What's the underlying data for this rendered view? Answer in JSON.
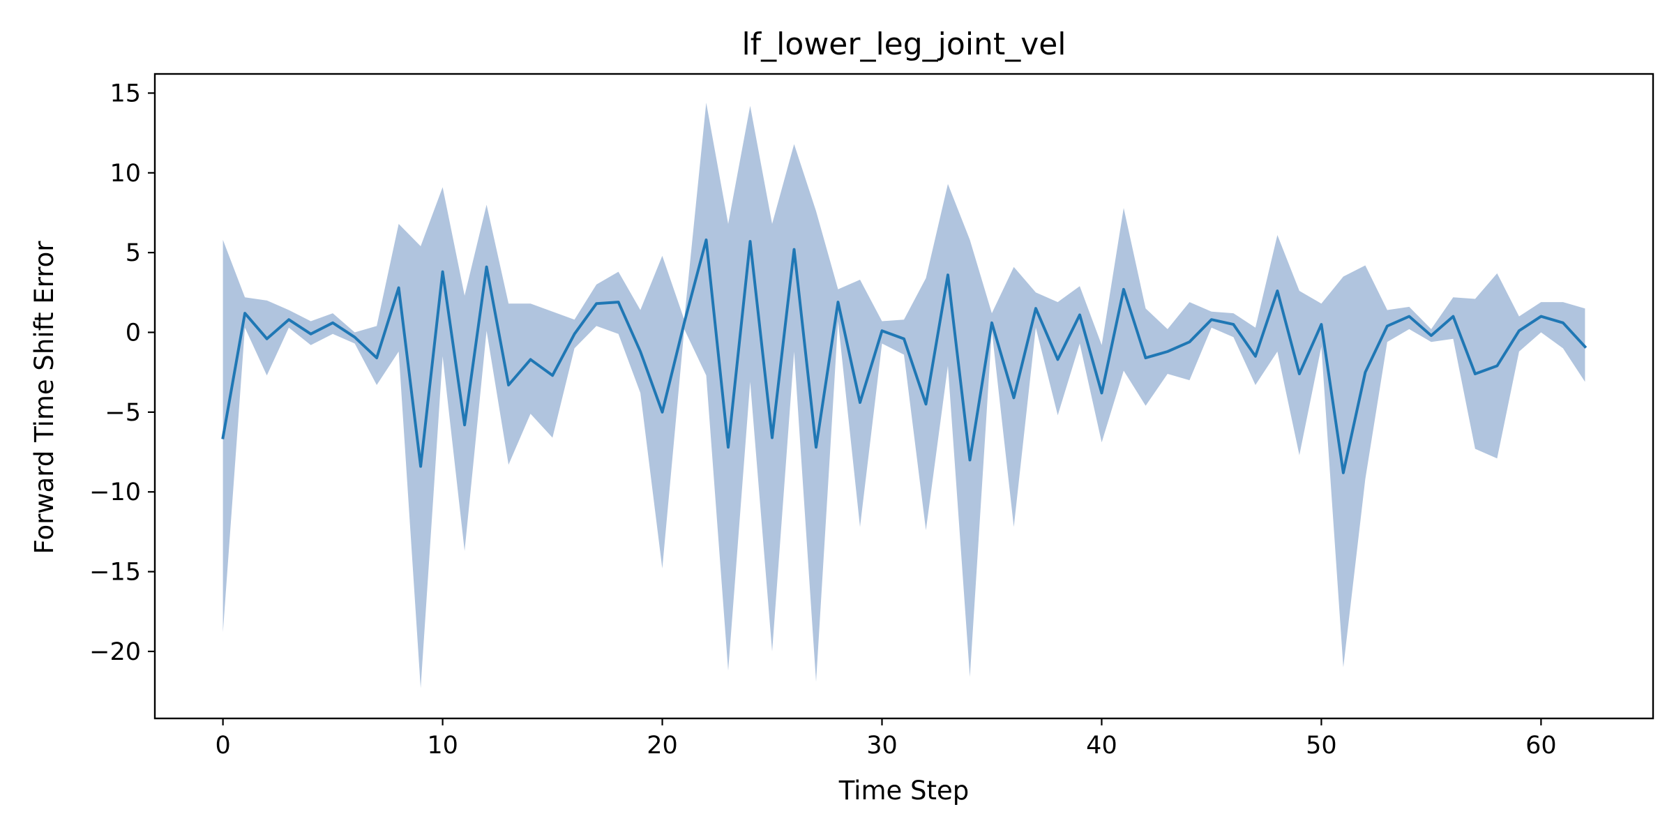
{
  "chart_data": {
    "type": "line",
    "title": "lf_lower_leg_joint_vel",
    "xlabel": "Time Step",
    "ylabel": "Forward Time Shift Error",
    "xlim": [
      -3.1,
      65.1
    ],
    "ylim": [
      -24.2,
      16.2
    ],
    "x_ticks": [
      0,
      10,
      20,
      30,
      40,
      50,
      60
    ],
    "x_tick_labels": [
      "0",
      "10",
      "20",
      "30",
      "40",
      "50",
      "60"
    ],
    "y_ticks": [
      -20,
      -15,
      -10,
      -5,
      0,
      5,
      10,
      15
    ],
    "y_tick_labels": [
      "−20",
      "−15",
      "−10",
      "−5",
      "0",
      "5",
      "10",
      "15"
    ],
    "grid": false,
    "legend": "none",
    "colors": {
      "line": "#1f77b4",
      "band": "#b0c4de"
    },
    "x": [
      0,
      1,
      2,
      3,
      4,
      5,
      6,
      7,
      8,
      9,
      10,
      11,
      12,
      13,
      14,
      15,
      16,
      17,
      18,
      19,
      20,
      21,
      22,
      23,
      24,
      25,
      26,
      27,
      28,
      29,
      30,
      31,
      32,
      33,
      34,
      35,
      36,
      37,
      38,
      39,
      40,
      41,
      42,
      43,
      44,
      45,
      46,
      47,
      48,
      49,
      50,
      51,
      52,
      53,
      54,
      55,
      56,
      57,
      58,
      59,
      60,
      61,
      62
    ],
    "series": [
      {
        "mean": [
          -6.6,
          1.2,
          -0.4,
          0.8,
          -0.1,
          0.6,
          -0.3,
          -1.6,
          2.8,
          -8.4,
          3.8,
          -5.8,
          4.1,
          -3.3,
          -1.7,
          -2.7,
          -0.1,
          1.8,
          1.9,
          -1.2,
          -5.0,
          0.6,
          5.8,
          -7.2,
          5.7,
          -6.6,
          5.2,
          -7.2,
          1.9,
          -4.4,
          0.1,
          -0.4,
          -4.5,
          3.6,
          -8.0,
          0.6,
          -4.1,
          1.5,
          -1.7,
          1.1,
          -3.8,
          2.7,
          -1.6,
          -1.2,
          -0.6,
          0.8,
          0.5,
          -1.5,
          2.6,
          -2.6,
          0.5,
          -8.8,
          -2.5,
          0.4,
          1.0,
          -0.2,
          1.0,
          -2.6,
          -2.1,
          0.1,
          1.0,
          0.6,
          -0.9
        ],
        "upper": [
          5.8,
          2.2,
          2.0,
          1.4,
          0.7,
          1.2,
          0.0,
          0.4,
          6.8,
          5.4,
          9.1,
          2.3,
          8.0,
          1.8,
          1.8,
          1.3,
          0.8,
          3.0,
          3.8,
          1.4,
          4.8,
          0.8,
          14.4,
          6.8,
          14.2,
          6.8,
          11.8,
          7.6,
          2.7,
          3.3,
          0.7,
          0.8,
          3.4,
          9.3,
          5.8,
          1.2,
          4.1,
          2.5,
          1.9,
          2.9,
          -0.8,
          7.8,
          1.5,
          0.2,
          1.9,
          1.3,
          1.2,
          0.3,
          6.1,
          2.6,
          1.8,
          3.5,
          4.2,
          1.4,
          1.6,
          0.2,
          2.2,
          2.1,
          3.7,
          1.0,
          1.9,
          1.9,
          1.5
        ],
        "lower": [
          -18.8,
          0.3,
          -2.7,
          0.3,
          -0.8,
          -0.1,
          -0.7,
          -3.3,
          -1.2,
          -22.3,
          -1.5,
          -13.7,
          0.1,
          -8.3,
          -5.1,
          -6.6,
          -1.0,
          0.4,
          -0.1,
          -3.8,
          -14.8,
          0.2,
          -2.7,
          -21.2,
          -3.1,
          -20.0,
          -1.2,
          -21.9,
          0.7,
          -12.2,
          -0.7,
          -1.4,
          -12.4,
          -2.1,
          -21.6,
          0.1,
          -12.2,
          0.3,
          -5.2,
          -0.7,
          -6.9,
          -2.4,
          -4.6,
          -2.6,
          -3.0,
          0.3,
          -0.3,
          -3.3,
          -1.2,
          -7.7,
          -0.9,
          -21.0,
          -9.2,
          -0.6,
          0.2,
          -0.6,
          -0.4,
          -7.3,
          -7.9,
          -1.2,
          0.0,
          -1.0,
          -3.1
        ]
      }
    ]
  }
}
